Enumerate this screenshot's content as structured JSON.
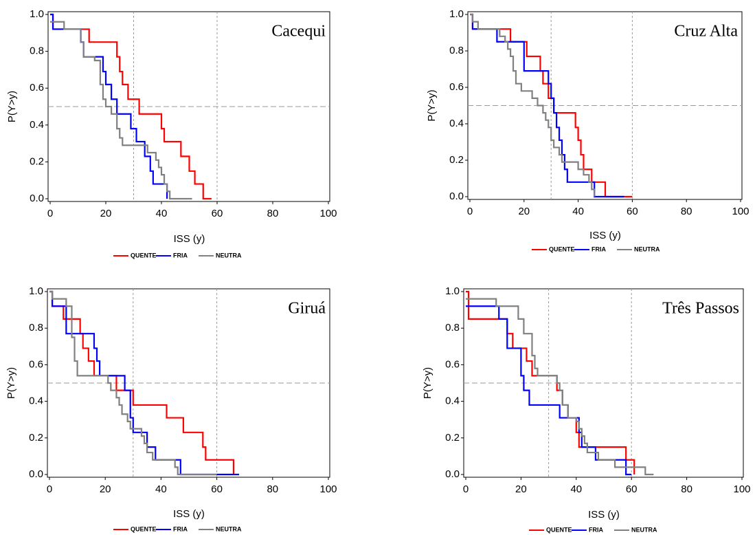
{
  "chart_data": [
    {
      "type": "step",
      "title": "Cacequi",
      "xlabel": "ISS (y)",
      "ylabel": "P(Y>y)",
      "xlim": [
        0,
        100
      ],
      "ylim": [
        0,
        1
      ],
      "xticks": [
        0,
        20,
        40,
        60,
        80,
        100
      ],
      "yticks": [
        {
          "value": 0,
          "label": "0.0"
        },
        {
          "value": 0.2,
          "label": "0.2"
        },
        {
          "value": 0.4,
          "label": "0.4"
        },
        {
          "value": 0.6,
          "label": "0.6"
        },
        {
          "value": 0.8,
          "label": "0.8"
        },
        {
          "value": 1,
          "label": "1.0"
        }
      ],
      "hlines": [
        0.5
      ],
      "vlines": [
        30,
        60
      ],
      "series": [
        {
          "name": "QUENTE",
          "color": "#ff0000",
          "x": [
            0,
            1,
            14,
            24,
            25,
            26,
            28,
            32,
            40,
            41,
            47,
            50,
            52,
            55,
            58
          ],
          "values": [
            1,
            0.92,
            0.85,
            0.77,
            0.69,
            0.62,
            0.54,
            0.46,
            0.38,
            0.31,
            0.23,
            0.15,
            0.08,
            0,
            0
          ]
        },
        {
          "name": "FRIA",
          "color": "#0000ff",
          "x": [
            0,
            1,
            11,
            12,
            19,
            20,
            22,
            24,
            29,
            31,
            34,
            36,
            37,
            42
          ],
          "values": [
            1,
            0.92,
            0.85,
            0.77,
            0.69,
            0.62,
            0.54,
            0.46,
            0.38,
            0.31,
            0.23,
            0.15,
            0.08,
            0
          ]
        },
        {
          "name": "NEUTRA",
          "color": "#808080",
          "x": [
            0,
            5,
            11,
            12,
            16,
            18,
            19,
            20,
            22,
            24,
            25,
            26,
            35,
            38,
            39,
            40,
            41,
            42,
            43,
            51
          ],
          "values": [
            0.96,
            0.92,
            0.85,
            0.77,
            0.75,
            0.62,
            0.54,
            0.5,
            0.46,
            0.38,
            0.33,
            0.29,
            0.25,
            0.21,
            0.17,
            0.13,
            0.08,
            0.04,
            0,
            0
          ]
        }
      ]
    },
    {
      "type": "step",
      "title": "Cruz Alta",
      "xlabel": "ISS (y)",
      "ylabel": "P(Y>y)",
      "xlim": [
        0,
        100
      ],
      "ylim": [
        0,
        1
      ],
      "xticks": [
        0,
        20,
        40,
        60,
        80,
        100
      ],
      "yticks": [
        {
          "value": 0,
          "label": "0.0"
        },
        {
          "value": 0.2,
          "label": "0.2"
        },
        {
          "value": 0.4,
          "label": "0.4"
        },
        {
          "value": 0.6,
          "label": "0.6"
        },
        {
          "value": 0.8,
          "label": "0.8"
        },
        {
          "value": 1,
          "label": "1.0"
        }
      ],
      "hlines": [
        0.5
      ],
      "vlines": [
        30,
        60
      ],
      "series": [
        {
          "name": "QUENTE",
          "color": "#ff0000",
          "x": [
            0,
            1,
            15,
            21,
            26,
            27,
            29,
            31,
            39,
            40,
            41,
            42,
            45,
            50,
            60
          ],
          "values": [
            1,
            0.92,
            0.85,
            0.77,
            0.69,
            0.62,
            0.54,
            0.46,
            0.38,
            0.31,
            0.23,
            0.15,
            0.08,
            0,
            0
          ]
        },
        {
          "name": "FRIA",
          "color": "#0000ff",
          "x": [
            0,
            1,
            10,
            20,
            29,
            30,
            31,
            32,
            33,
            34,
            35,
            36,
            46,
            57
          ],
          "values": [
            1,
            0.92,
            0.85,
            0.69,
            0.62,
            0.54,
            0.46,
            0.38,
            0.31,
            0.23,
            0.15,
            0.08,
            0,
            0
          ]
        },
        {
          "name": "NEUTRA",
          "color": "#808080",
          "x": [
            0,
            1,
            3,
            11,
            13,
            14,
            15,
            16,
            17,
            19,
            23,
            25,
            27,
            28,
            29,
            30,
            31,
            33,
            34,
            40,
            42,
            44,
            45,
            46
          ],
          "values": [
            1,
            0.96,
            0.92,
            0.88,
            0.85,
            0.81,
            0.77,
            0.69,
            0.62,
            0.58,
            0.54,
            0.5,
            0.46,
            0.42,
            0.38,
            0.31,
            0.27,
            0.23,
            0.19,
            0.15,
            0.12,
            0.08,
            0.04,
            0
          ]
        }
      ]
    },
    {
      "type": "step",
      "title": "Giruá",
      "xlabel": "ISS (y)",
      "ylabel": "P(Y>y)",
      "xlim": [
        0,
        100
      ],
      "ylim": [
        0,
        1
      ],
      "xticks": [
        0,
        20,
        40,
        60,
        80,
        100
      ],
      "yticks": [
        {
          "value": 0,
          "label": "0.0"
        },
        {
          "value": 0.2,
          "label": "0.2"
        },
        {
          "value": 0.4,
          "label": "0.4"
        },
        {
          "value": 0.6,
          "label": "0.6"
        },
        {
          "value": 0.8,
          "label": "0.8"
        },
        {
          "value": 1,
          "label": "1.0"
        }
      ],
      "hlines": [
        0.5
      ],
      "vlines": [
        30,
        60
      ],
      "series": [
        {
          "name": "QUENTE",
          "color": "#ff0000",
          "x": [
            0,
            1,
            5,
            11,
            12,
            14,
            16,
            24,
            30,
            42,
            48,
            55,
            56,
            66
          ],
          "values": [
            1,
            0.92,
            0.85,
            0.77,
            0.69,
            0.62,
            0.54,
            0.46,
            0.38,
            0.31,
            0.23,
            0.15,
            0.08,
            0
          ]
        },
        {
          "name": "FRIA",
          "color": "#0000ff",
          "x": [
            0,
            1,
            6,
            16,
            17,
            18,
            27,
            29,
            30,
            35,
            38,
            47,
            68
          ],
          "values": [
            1,
            0.92,
            0.77,
            0.69,
            0.62,
            0.54,
            0.46,
            0.31,
            0.23,
            0.15,
            0.08,
            0,
            0
          ]
        },
        {
          "name": "NEUTRA",
          "color": "#808080",
          "x": [
            0,
            1,
            6,
            8,
            9,
            10,
            21,
            22,
            24,
            25,
            26,
            28,
            29,
            33,
            34,
            35,
            37,
            45,
            46,
            60
          ],
          "values": [
            1,
            0.96,
            0.92,
            0.75,
            0.62,
            0.54,
            0.5,
            0.46,
            0.42,
            0.38,
            0.33,
            0.29,
            0.25,
            0.21,
            0.17,
            0.12,
            0.08,
            0.04,
            0,
            0
          ]
        }
      ]
    },
    {
      "type": "step",
      "title": "Três Passos",
      "xlabel": "ISS (y)",
      "ylabel": "P(Y>y)",
      "xlim": [
        0,
        100
      ],
      "ylim": [
        0,
        1
      ],
      "xticks": [
        0,
        20,
        40,
        60,
        80,
        100
      ],
      "yticks": [
        {
          "value": 0,
          "label": "0.0"
        },
        {
          "value": 0.2,
          "label": "0.2"
        },
        {
          "value": 0.4,
          "label": "0.4"
        },
        {
          "value": 0.6,
          "label": "0.6"
        },
        {
          "value": 0.8,
          "label": "0.8"
        },
        {
          "value": 1,
          "label": "1.0"
        }
      ],
      "hlines": [
        0.5
      ],
      "vlines": [
        30,
        60
      ],
      "series": [
        {
          "name": "QUENTE",
          "color": "#ff0000",
          "x": [
            0,
            1,
            15,
            17,
            22,
            24,
            33,
            35,
            37,
            40,
            41,
            58,
            61
          ],
          "values": [
            1,
            0.85,
            0.77,
            0.69,
            0.62,
            0.54,
            0.46,
            0.38,
            0.31,
            0.23,
            0.15,
            0.08,
            0
          ]
        },
        {
          "name": "FRIA",
          "color": "#0000ff",
          "x": [
            0,
            12,
            15,
            20,
            21,
            23,
            34,
            41,
            42,
            47,
            58,
            60
          ],
          "values": [
            0.92,
            0.85,
            0.69,
            0.54,
            0.46,
            0.38,
            0.31,
            0.23,
            0.15,
            0.08,
            0,
            0
          ]
        },
        {
          "name": "NEUTRA",
          "color": "#808080",
          "x": [
            0,
            11,
            19,
            21,
            24,
            25,
            26,
            33,
            34,
            35,
            37,
            40,
            41,
            42,
            43,
            44,
            48,
            54,
            65,
            68
          ],
          "values": [
            0.96,
            0.92,
            0.85,
            0.77,
            0.65,
            0.58,
            0.54,
            0.5,
            0.46,
            0.38,
            0.31,
            0.29,
            0.25,
            0.21,
            0.17,
            0.12,
            0.08,
            0.04,
            0,
            0
          ]
        }
      ]
    }
  ]
}
